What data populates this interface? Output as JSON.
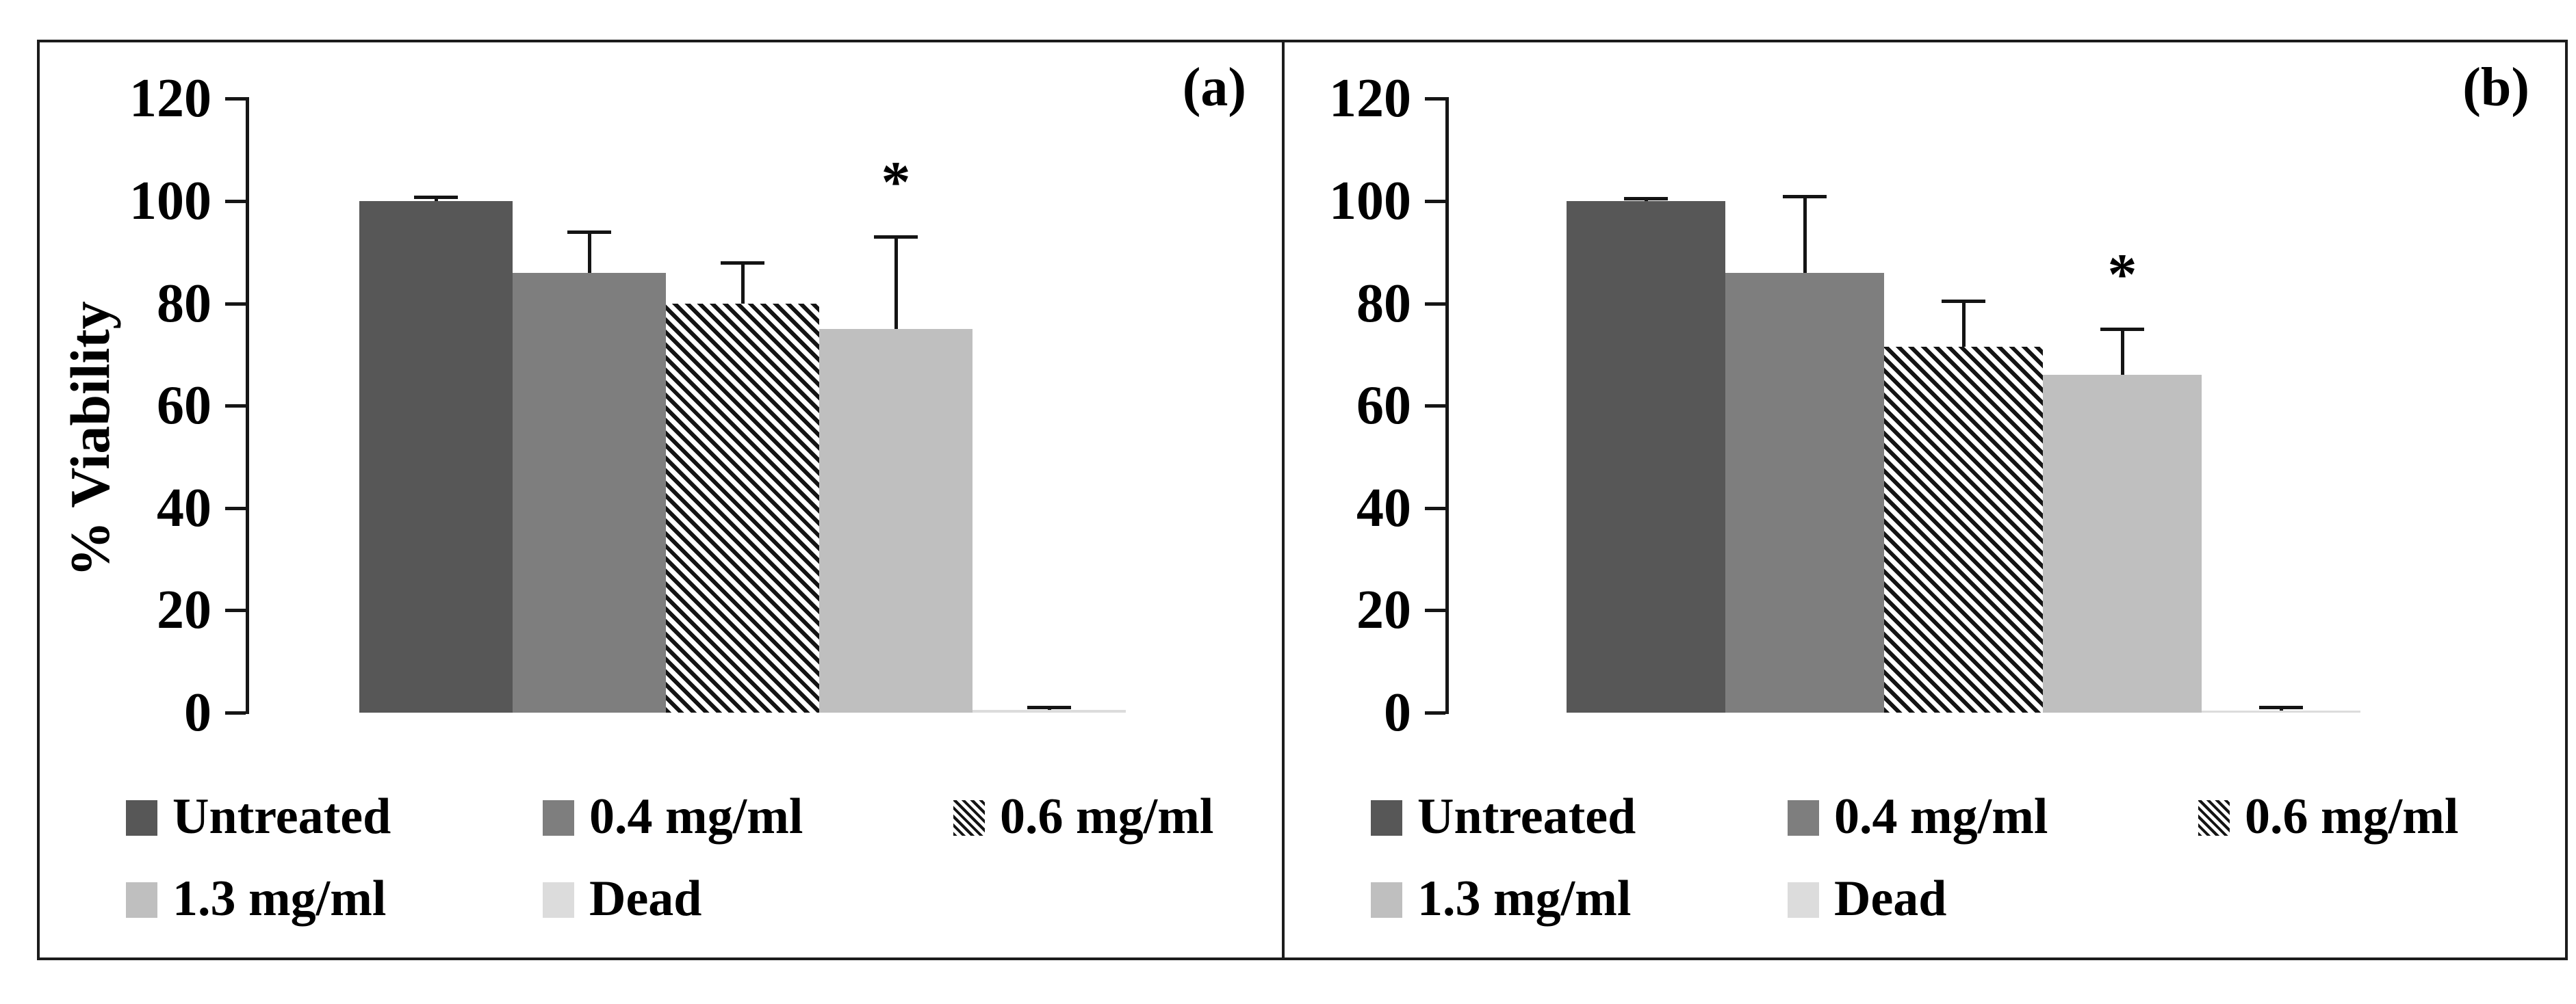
{
  "styles": {
    "axis_color": "#161616",
    "border_color": "#1c1c1c",
    "error_bar_color": "#141414",
    "hatch_color": "#141414",
    "text_color": "#000000"
  },
  "chart_data": [
    {
      "type": "bar",
      "panel_label": "(a)",
      "ylabel": "% Viability",
      "ylim": [
        0,
        120
      ],
      "yticks": [
        0,
        20,
        40,
        60,
        80,
        100,
        120
      ],
      "grid": false,
      "legend_position": "bottom",
      "categories": [
        "Untreated",
        "0.4 mg/ml",
        "0.6 mg/ml",
        "1.3 mg/ml",
        "Dead"
      ],
      "values": [
        100,
        86,
        80,
        75,
        0.5
      ],
      "errors_upper": [
        0.8,
        8,
        8,
        18,
        0.6
      ],
      "significance": [
        "",
        "",
        "",
        "*",
        ""
      ],
      "bar_styles": [
        {
          "fill": "#575757",
          "hatch": false
        },
        {
          "fill": "#7e7e7e",
          "hatch": false
        },
        {
          "fill": "#ffffff",
          "hatch": true
        },
        {
          "fill": "#bfbfbf",
          "hatch": false
        },
        {
          "fill": "#dcdcdc",
          "hatch": false
        }
      ]
    },
    {
      "type": "bar",
      "panel_label": "(b)",
      "ylabel": "",
      "ylim": [
        0,
        120
      ],
      "yticks": [
        0,
        20,
        40,
        60,
        80,
        100,
        120
      ],
      "grid": false,
      "legend_position": "bottom",
      "categories": [
        "Untreated",
        "0.4 mg/ml",
        "0.6 mg/ml",
        "1.3 mg/ml",
        "Dead"
      ],
      "values": [
        100,
        86,
        71.5,
        66,
        0.4
      ],
      "errors_upper": [
        0.6,
        15,
        9,
        9,
        0.7
      ],
      "significance": [
        "",
        "",
        "",
        "*",
        ""
      ],
      "bar_styles": [
        {
          "fill": "#575757",
          "hatch": false
        },
        {
          "fill": "#7e7e7e",
          "hatch": false
        },
        {
          "fill": "#ffffff",
          "hatch": true
        },
        {
          "fill": "#bfbfbf",
          "hatch": false
        },
        {
          "fill": "#dcdcdc",
          "hatch": false
        }
      ]
    }
  ]
}
